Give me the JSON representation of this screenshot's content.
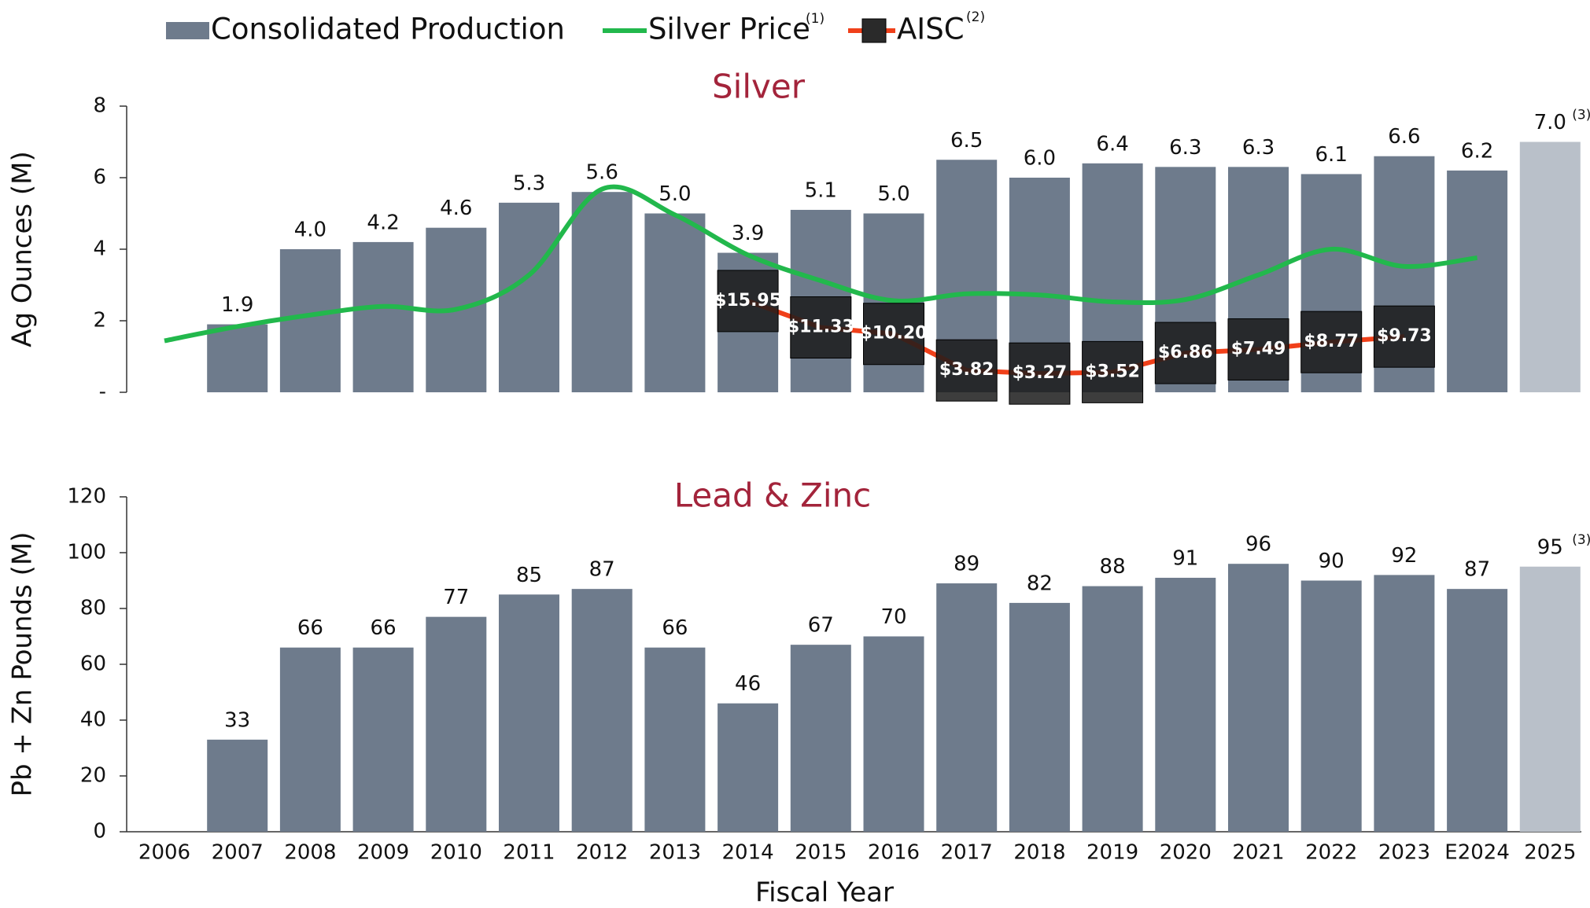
{
  "chart_data": [
    {
      "type": "bar",
      "title": "Silver",
      "ylabel": "Ag Ounces (M)",
      "ylim": [
        0,
        8
      ],
      "yticks": [
        {
          "value": 0,
          "label": "-"
        },
        2,
        4,
        6,
        8
      ],
      "y2lim": [
        0,
        50
      ],
      "series": [
        {
          "name": "Consolidated Production",
          "type": "bar",
          "color": "#6e7b8c",
          "colors": [
            "#6e7b8c",
            "#6e7b8c",
            "#6e7b8c",
            "#6e7b8c",
            "#6e7b8c",
            "#6e7b8c",
            "#6e7b8c",
            "#6e7b8c",
            "#6e7b8c",
            "#6e7b8c",
            "#6e7b8c",
            "#6e7b8c",
            "#6e7b8c",
            "#6e7b8c",
            "#6e7b8c",
            "#6e7b8c",
            "#6e7b8c",
            "#6e7b8c",
            "#6e7b8c",
            "#b9c0c9"
          ],
          "values": [
            null,
            1.9,
            4.0,
            4.2,
            4.6,
            5.3,
            5.6,
            5.0,
            3.9,
            5.1,
            5.0,
            6.5,
            6.0,
            6.4,
            6.3,
            6.3,
            6.1,
            6.6,
            6.2,
            7.0
          ],
          "value_labels": [
            null,
            "1.9",
            "4.0",
            "4.2",
            "4.6",
            "5.3",
            "5.6",
            "5.0",
            "3.9",
            "5.1",
            "5.0",
            "6.5",
            "6.0",
            "6.4",
            "6.3",
            "6.3",
            "6.1",
            "6.6",
            "6.2",
            "7.0"
          ]
        },
        {
          "name": "Silver Price",
          "note": "(1)",
          "type": "line",
          "axis": "y2",
          "color": "#22b84c",
          "values": [
            9,
            11.5,
            13.5,
            15,
            14.5,
            20.5,
            35.5,
            31,
            24,
            19.5,
            16,
            17.2,
            17,
            15.8,
            16.2,
            20.5,
            25,
            22,
            23.5,
            null
          ]
        },
        {
          "name": "AISC",
          "note": "(2)",
          "type": "marker",
          "axis": "y2",
          "color": "#f0401a",
          "values": [
            null,
            null,
            null,
            null,
            null,
            null,
            null,
            null,
            15.95,
            11.33,
            10.2,
            3.82,
            3.27,
            3.52,
            6.86,
            7.49,
            8.77,
            9.73,
            null,
            null
          ],
          "value_labels": [
            null,
            null,
            null,
            null,
            null,
            null,
            null,
            null,
            "$15.95",
            "$11.33",
            "$10.20",
            "$3.82",
            "$3.27",
            "$3.52",
            "$6.86",
            "$7.49",
            "$8.77",
            "$9.73",
            null,
            null
          ]
        }
      ],
      "annotations": [
        "(3)"
      ]
    },
    {
      "type": "bar",
      "title": "Lead & Zinc",
      "ylabel": "Pb + Zn Pounds (M)",
      "xlabel": "Fiscal Year",
      "categories": [
        "2006",
        "2007",
        "2008",
        "2009",
        "2010",
        "2011",
        "2012",
        "2013",
        "2014",
        "2015",
        "2016",
        "2017",
        "2018",
        "2019",
        "2020",
        "2021",
        "2022",
        "2023",
        "E2024",
        "2025"
      ],
      "ylim": [
        0,
        120
      ],
      "yticks": [
        0,
        20,
        40,
        60,
        80,
        100,
        120
      ],
      "series": [
        {
          "type": "bar",
          "color": "#6e7b8c",
          "colors": [
            "#6e7b8c",
            "#6e7b8c",
            "#6e7b8c",
            "#6e7b8c",
            "#6e7b8c",
            "#6e7b8c",
            "#6e7b8c",
            "#6e7b8c",
            "#6e7b8c",
            "#6e7b8c",
            "#6e7b8c",
            "#6e7b8c",
            "#6e7b8c",
            "#6e7b8c",
            "#6e7b8c",
            "#6e7b8c",
            "#6e7b8c",
            "#6e7b8c",
            "#6e7b8c",
            "#b9c0c9"
          ],
          "values": [
            null,
            33,
            66,
            66,
            77,
            85,
            87,
            66,
            46,
            67,
            70,
            89,
            82,
            88,
            91,
            96,
            90,
            92,
            87,
            95
          ]
        }
      ],
      "annotations": [
        "(3)"
      ]
    }
  ]
}
